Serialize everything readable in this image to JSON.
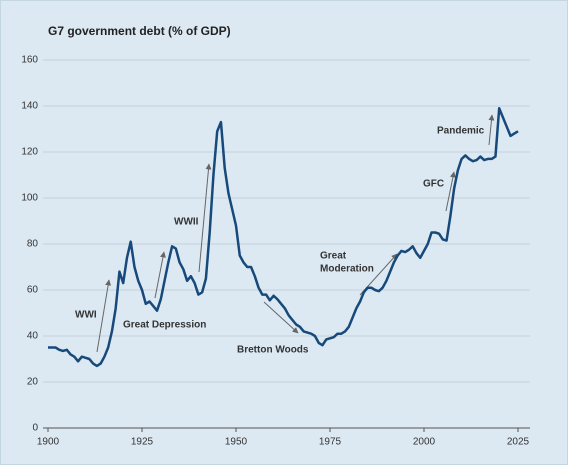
{
  "chart_data": {
    "type": "line",
    "title": "G7 government debt (% of GDP)",
    "x": [
      1900,
      1901,
      1902,
      1903,
      1904,
      1905,
      1906,
      1907,
      1908,
      1909,
      1910,
      1911,
      1912,
      1913,
      1914,
      1915,
      1916,
      1917,
      1918,
      1919,
      1920,
      1921,
      1922,
      1923,
      1924,
      1925,
      1926,
      1927,
      1928,
      1929,
      1930,
      1931,
      1932,
      1933,
      1934,
      1935,
      1936,
      1937,
      1938,
      1939,
      1940,
      1941,
      1942,
      1943,
      1944,
      1945,
      1946,
      1947,
      1948,
      1949,
      1950,
      1951,
      1952,
      1953,
      1954,
      1955,
      1956,
      1957,
      1958,
      1959,
      1960,
      1961,
      1962,
      1963,
      1964,
      1965,
      1966,
      1967,
      1968,
      1969,
      1970,
      1971,
      1972,
      1973,
      1974,
      1975,
      1976,
      1977,
      1978,
      1979,
      1980,
      1981,
      1982,
      1983,
      1984,
      1985,
      1986,
      1987,
      1988,
      1989,
      1990,
      1991,
      1992,
      1993,
      1994,
      1995,
      1996,
      1997,
      1998,
      1999,
      2000,
      2001,
      2002,
      2003,
      2004,
      2005,
      2006,
      2007,
      2008,
      2009,
      2010,
      2011,
      2012,
      2013,
      2014,
      2015,
      2016,
      2017,
      2018,
      2019,
      2020,
      2021,
      2022,
      2023,
      2024,
      2025
    ],
    "series": [
      {
        "name": "G7 government debt",
        "color": "#17497a",
        "values": [
          35,
          35,
          35,
          34,
          33.5,
          34,
          32,
          31,
          29,
          31,
          30.5,
          30,
          28,
          27,
          28,
          31,
          35,
          42,
          52,
          68,
          63,
          74,
          81,
          70,
          64,
          60,
          54,
          55,
          53,
          51,
          56,
          64,
          72,
          79,
          78,
          72,
          69,
          64,
          66,
          63,
          58,
          59,
          65,
          85,
          110,
          129,
          133,
          113,
          102,
          95,
          88,
          75,
          72,
          70,
          70,
          66,
          61,
          58,
          58,
          55.5,
          57.5,
          56,
          54,
          52,
          49,
          47,
          45,
          44,
          42,
          41.5,
          41,
          40,
          37,
          36,
          38.5,
          39,
          39.5,
          41,
          41,
          42,
          44,
          48,
          52,
          55,
          59,
          61,
          61,
          60,
          59.5,
          61,
          64,
          68,
          72,
          75,
          77,
          76.5,
          77.5,
          79,
          76,
          74,
          77,
          80,
          85,
          85,
          84.5,
          82,
          81.5,
          92,
          104,
          112,
          117,
          118.5,
          117,
          116,
          116.5,
          118,
          116.5,
          117,
          117,
          118,
          139,
          135,
          131,
          127,
          128,
          129
        ]
      }
    ],
    "xlim": [
      1900,
      2025
    ],
    "xticks": [
      1900,
      1925,
      1950,
      1975,
      2000,
      2025
    ],
    "ylim": [
      0,
      160
    ],
    "yticks": [
      0,
      20,
      40,
      60,
      80,
      100,
      120,
      140,
      160
    ],
    "grid": true,
    "annotations": [
      "WWI",
      "Great Depression",
      "WWII",
      "Bretton Woods",
      [
        "Great",
        "Moderation"
      ],
      "GFC",
      "Pandemic"
    ]
  }
}
